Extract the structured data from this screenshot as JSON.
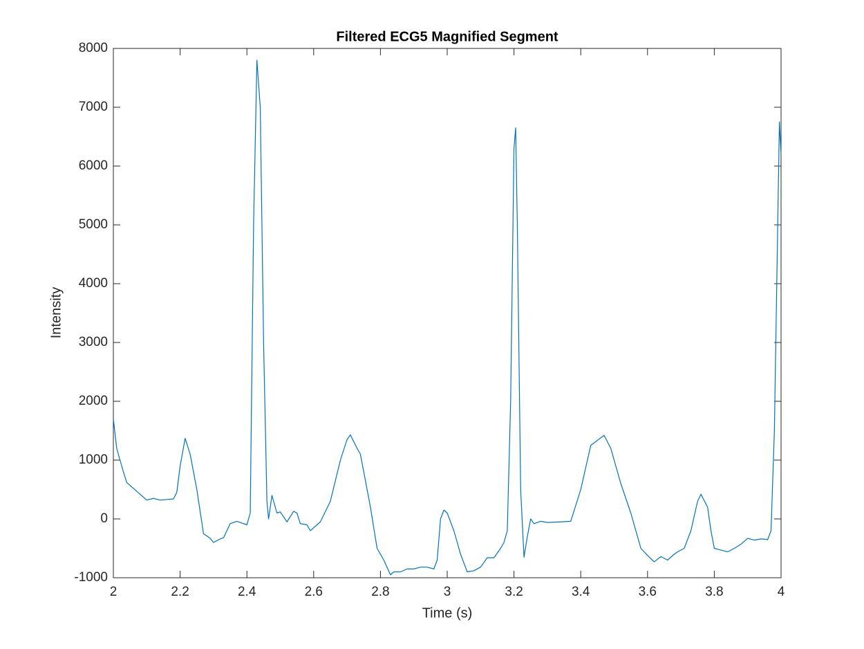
{
  "chart_data": {
    "type": "line",
    "title": "Filtered ECG5 Magnified Segment",
    "x_label": "Time (s)",
    "y_label": "Intensity",
    "x": [
      2.0,
      2.01,
      2.02,
      2.03,
      2.04,
      2.06,
      2.08,
      2.1,
      2.12,
      2.14,
      2.16,
      2.18,
      2.19,
      2.2,
      2.215,
      2.23,
      2.25,
      2.27,
      2.29,
      2.3,
      2.32,
      2.33,
      2.35,
      2.37,
      2.39,
      2.4,
      2.41,
      2.42,
      2.43,
      2.44,
      2.45,
      2.46,
      2.465,
      2.47,
      2.475,
      2.48,
      2.49,
      2.5,
      2.52,
      2.54,
      2.55,
      2.56,
      2.58,
      2.59,
      2.61,
      2.62,
      2.65,
      2.68,
      2.7,
      2.71,
      2.73,
      2.74,
      2.76,
      2.77,
      2.79,
      2.81,
      2.83,
      2.84,
      2.86,
      2.88,
      2.9,
      2.92,
      2.94,
      2.96,
      2.97,
      2.98,
      2.99,
      3.0,
      3.02,
      3.04,
      3.06,
      3.08,
      3.1,
      3.12,
      3.14,
      3.16,
      3.17,
      3.18,
      3.19,
      3.2,
      3.205,
      3.21,
      3.22,
      3.23,
      3.24,
      3.25,
      3.26,
      3.28,
      3.3,
      3.34,
      3.37,
      3.4,
      3.43,
      3.46,
      3.47,
      3.49,
      3.52,
      3.55,
      3.58,
      3.6,
      3.62,
      3.64,
      3.66,
      3.68,
      3.69,
      3.71,
      3.73,
      3.75,
      3.76,
      3.78,
      3.79,
      3.8,
      3.82,
      3.84,
      3.86,
      3.88,
      3.9,
      3.92,
      3.94,
      3.96,
      3.97,
      3.98,
      3.99,
      3.995,
      4.0
    ],
    "series": [
      {
        "name": "ECG5",
        "color": "#0072bd",
        "values": [
          1700,
          1200,
          1000,
          800,
          620,
          520,
          420,
          320,
          350,
          320,
          330,
          340,
          450,
          900,
          1370,
          1100,
          500,
          -250,
          -330,
          -400,
          -340,
          -320,
          -80,
          -40,
          -80,
          -100,
          100,
          5000,
          7800,
          7000,
          3000,
          300,
          0,
          200,
          400,
          300,
          100,
          120,
          -50,
          130,
          100,
          -80,
          -100,
          -200,
          -100,
          -50,
          300,
          1000,
          1350,
          1430,
          1200,
          1100,
          500,
          200,
          -500,
          -700,
          -950,
          -900,
          -900,
          -850,
          -850,
          -820,
          -820,
          -850,
          -700,
          0,
          150,
          100,
          -200,
          -600,
          -900,
          -880,
          -820,
          -660,
          -660,
          -500,
          -400,
          -200,
          2000,
          6300,
          6650,
          5000,
          500,
          -650,
          -300,
          0,
          -80,
          -40,
          -60,
          -50,
          -40,
          500,
          1250,
          1380,
          1420,
          1200,
          600,
          100,
          -500,
          -620,
          -730,
          -640,
          -700,
          -600,
          -560,
          -500,
          -200,
          300,
          420,
          200,
          -200,
          -500,
          -530,
          -560,
          -500,
          -430,
          -330,
          -360,
          -340,
          -350,
          -200,
          1500,
          5000,
          6750,
          6200
        ]
      }
    ],
    "xlim": [
      2,
      4
    ],
    "xticks": [
      2,
      2.2,
      2.4,
      2.6,
      2.8,
      3,
      3.2,
      3.4,
      3.6,
      3.8,
      4
    ],
    "ylim": [
      -1000,
      8000
    ],
    "yticks": [
      -1000,
      0,
      1000,
      2000,
      3000,
      4000,
      5000,
      6000,
      7000,
      8000
    ]
  }
}
